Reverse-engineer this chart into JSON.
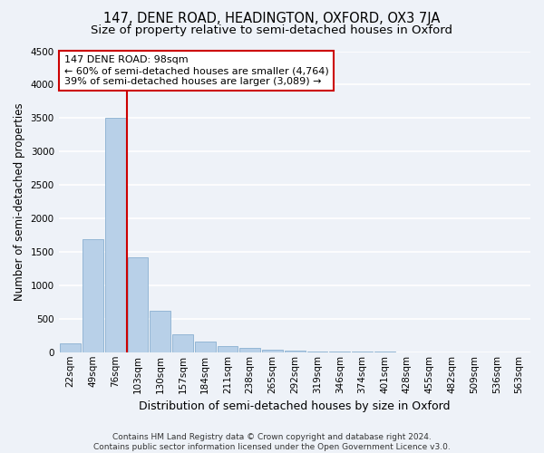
{
  "title": "147, DENE ROAD, HEADINGTON, OXFORD, OX3 7JA",
  "subtitle": "Size of property relative to semi-detached houses in Oxford",
  "xlabel": "Distribution of semi-detached houses by size in Oxford",
  "ylabel": "Number of semi-detached properties",
  "categories": [
    "22sqm",
    "49sqm",
    "76sqm",
    "103sqm",
    "130sqm",
    "157sqm",
    "184sqm",
    "211sqm",
    "238sqm",
    "265sqm",
    "292sqm",
    "319sqm",
    "346sqm",
    "374sqm",
    "401sqm",
    "428sqm",
    "455sqm",
    "482sqm",
    "509sqm",
    "536sqm",
    "563sqm"
  ],
  "values": [
    130,
    1690,
    3500,
    1420,
    620,
    270,
    155,
    90,
    65,
    40,
    20,
    15,
    10,
    8,
    5,
    3,
    2,
    2,
    1,
    1,
    0
  ],
  "bar_color": "#b8d0e8",
  "bar_edge_color": "#8ab0d0",
  "vline_color": "#cc0000",
  "annotation_line1": "147 DENE ROAD: 98sqm",
  "annotation_line2": "← 60% of semi-detached houses are smaller (4,764)",
  "annotation_line3": "39% of semi-detached houses are larger (3,089) →",
  "annotation_box_color": "#ffffff",
  "annotation_box_edge": "#cc0000",
  "footnote": "Contains HM Land Registry data © Crown copyright and database right 2024.\nContains public sector information licensed under the Open Government Licence v3.0.",
  "ylim": [
    0,
    4500
  ],
  "yticks": [
    0,
    500,
    1000,
    1500,
    2000,
    2500,
    3000,
    3500,
    4000,
    4500
  ],
  "background_color": "#eef2f8",
  "grid_color": "#ffffff",
  "title_fontsize": 10.5,
  "subtitle_fontsize": 9.5,
  "xlabel_fontsize": 9,
  "ylabel_fontsize": 8.5,
  "tick_fontsize": 7.5,
  "annotation_fontsize": 8,
  "footnote_fontsize": 6.5,
  "vline_x": 2.5
}
